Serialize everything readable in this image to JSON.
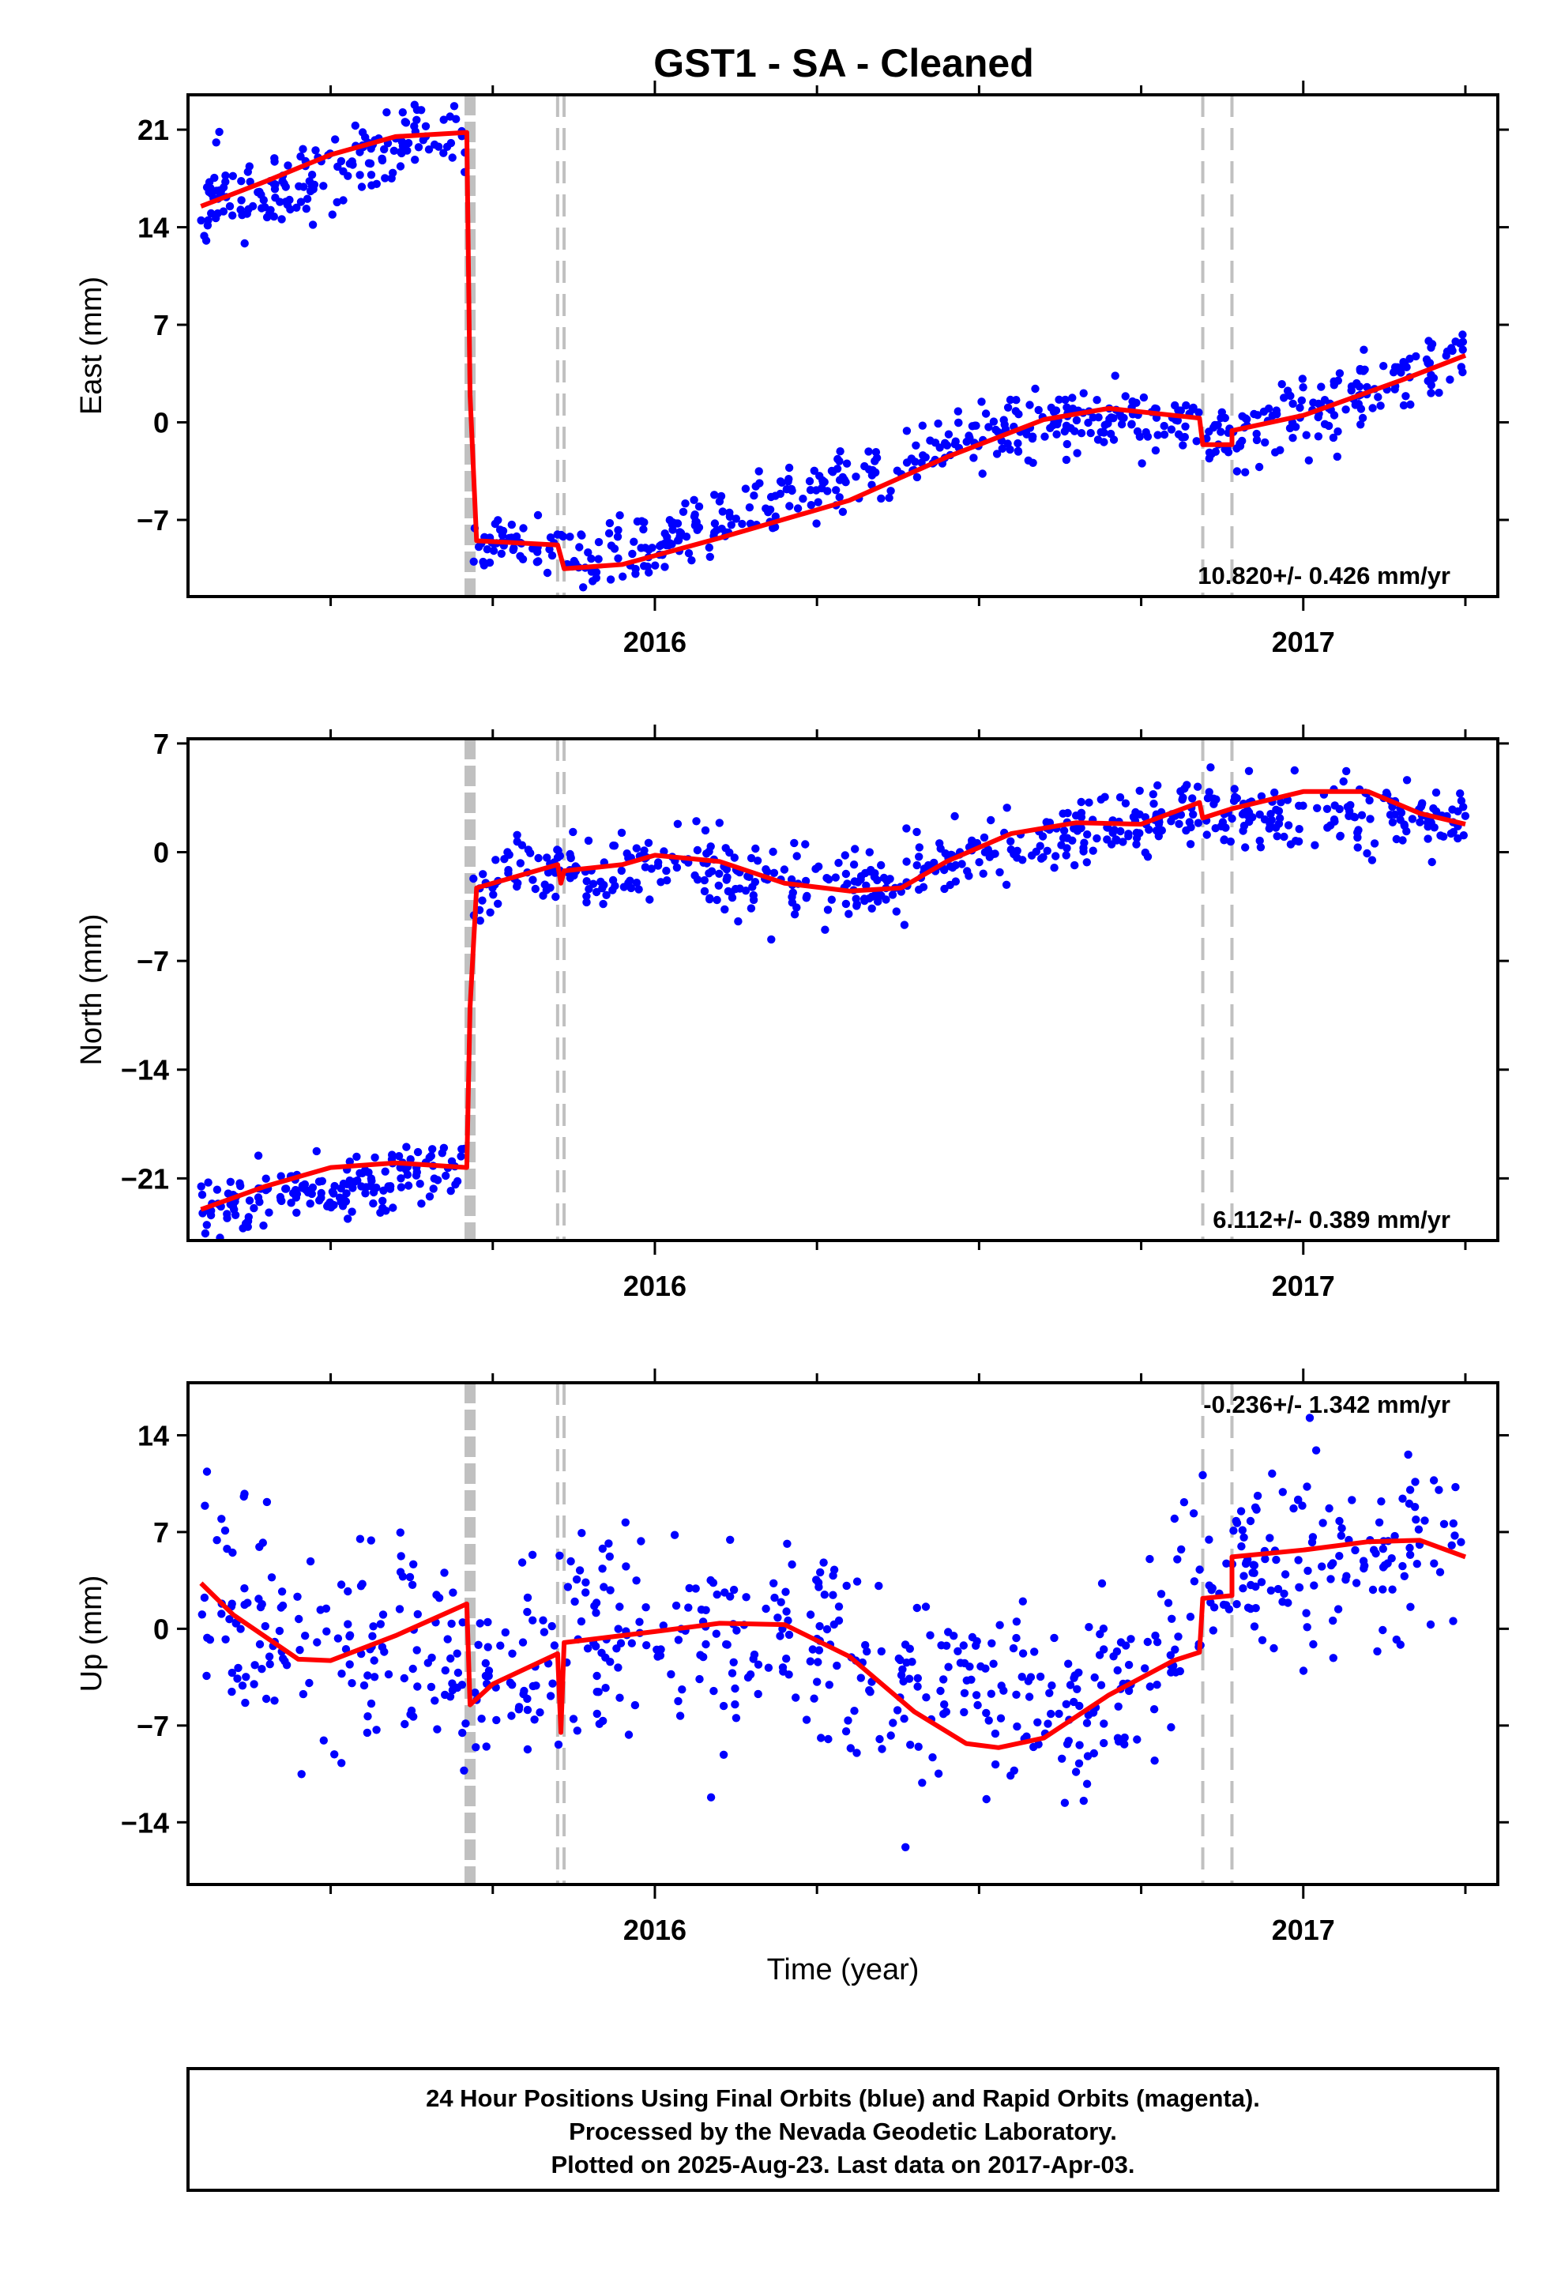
{
  "title": "GST1  - SA - Cleaned",
  "footer": {
    "line1": "24 Hour Positions Using Final Orbits (blue) and Rapid Orbits (magenta).",
    "line2": "Processed by the Nevada Geodetic Laboratory.",
    "line3": "Plotted on 2025-Aug-23. Last data on 2017-Apr-03."
  },
  "colors": {
    "points": "#0000ff",
    "fit": "#ff0000",
    "events": "#c0c0c0",
    "frame": "#000000"
  },
  "chart_data": [
    {
      "type": "scatter",
      "ylabel": "East (mm)",
      "xlabel": "",
      "xlim": [
        2015.28,
        2017.3
      ],
      "ylim": [
        -12.5,
        23.5
      ],
      "yticks": [
        -7,
        0,
        7,
        14,
        21
      ],
      "ytick_labels": [
        "−7",
        "0",
        "7",
        "14",
        "21"
      ],
      "xticks": [
        2016,
        2017
      ],
      "xtick_labels": [
        "2016",
        "2017"
      ],
      "rate_label": "10.820+/- 0.426 mm/yr",
      "rate_position": "bottom-right",
      "event_lines": [
        2015.715,
        2015.85,
        2015.86,
        2016.845,
        2016.89
      ],
      "fit": [
        [
          2015.3,
          15.5
        ],
        [
          2015.4,
          17.3
        ],
        [
          2015.5,
          19.2
        ],
        [
          2015.6,
          20.5
        ],
        [
          2015.71,
          20.8
        ],
        [
          2015.715,
          2.0
        ],
        [
          2015.725,
          -8.5
        ],
        [
          2015.85,
          -8.8
        ],
        [
          2015.86,
          -10.5
        ],
        [
          2015.95,
          -10.2
        ],
        [
          2016.1,
          -8.3
        ],
        [
          2016.3,
          -5.6
        ],
        [
          2016.45,
          -2.5
        ],
        [
          2016.6,
          0.2
        ],
        [
          2016.7,
          1.0
        ],
        [
          2016.84,
          0.3
        ],
        [
          2016.845,
          -1.6
        ],
        [
          2016.89,
          -1.6
        ],
        [
          2016.89,
          -0.6
        ],
        [
          2017.0,
          0.5
        ],
        [
          2017.15,
          3.0
        ],
        [
          2017.25,
          4.8
        ]
      ],
      "points": [
        {
          "x_range": [
            2015.3,
            2015.71
          ],
          "y_start": 15.5,
          "y_end": 20.8,
          "spread": 1.4,
          "n": 170,
          "seed": 11
        },
        {
          "x_range": [
            2015.72,
            2015.86
          ],
          "y_start": -8.8,
          "y_end": -8.8,
          "spread": 1.1,
          "n": 50,
          "seed": 12
        },
        {
          "x_range": [
            2015.86,
            2016.6
          ],
          "y_start": -10.5,
          "y_end": 0.2,
          "spread": 1.2,
          "n": 260,
          "seed": 13
        },
        {
          "x_range": [
            2016.6,
            2016.84
          ],
          "y_start": 0.2,
          "y_end": 0.3,
          "spread": 1.1,
          "n": 95,
          "seed": 14
        },
        {
          "x_range": [
            2016.85,
            2017.25
          ],
          "y_start": -1.6,
          "y_end": 4.8,
          "spread": 1.3,
          "n": 150,
          "seed": 15
        }
      ]
    },
    {
      "type": "scatter",
      "ylabel": "North (mm)",
      "xlabel": "",
      "xlim": [
        2015.28,
        2017.3
      ],
      "ylim": [
        -25,
        7.3
      ],
      "yticks": [
        -21,
        -14,
        -7,
        0,
        7
      ],
      "ytick_labels": [
        "−21",
        "−14",
        "−7",
        "0",
        "7"
      ],
      "xticks": [
        2016,
        2017
      ],
      "xtick_labels": [
        "2016",
        "2017"
      ],
      "rate_label": "6.112+/- 0.389 mm/yr",
      "rate_position": "bottom-right",
      "event_lines": [
        2015.715,
        2015.85,
        2015.86,
        2016.845,
        2016.89
      ],
      "fit": [
        [
          2015.3,
          -23.0
        ],
        [
          2015.4,
          -21.5
        ],
        [
          2015.5,
          -20.3
        ],
        [
          2015.6,
          -20.0
        ],
        [
          2015.71,
          -20.3
        ],
        [
          2015.715,
          -10.0
        ],
        [
          2015.725,
          -2.3
        ],
        [
          2015.85,
          -0.8
        ],
        [
          2015.855,
          -2.0
        ],
        [
          2015.86,
          -1.2
        ],
        [
          2015.95,
          -0.8
        ],
        [
          2016.0,
          -0.2
        ],
        [
          2016.1,
          -0.6
        ],
        [
          2016.2,
          -2.0
        ],
        [
          2016.3,
          -2.5
        ],
        [
          2016.38,
          -2.3
        ],
        [
          2016.45,
          -0.6
        ],
        [
          2016.55,
          1.2
        ],
        [
          2016.65,
          1.9
        ],
        [
          2016.75,
          1.8
        ],
        [
          2016.84,
          3.2
        ],
        [
          2016.845,
          2.2
        ],
        [
          2016.89,
          2.8
        ],
        [
          2017.0,
          3.9
        ],
        [
          2017.1,
          3.9
        ],
        [
          2017.18,
          2.5
        ],
        [
          2017.25,
          1.8
        ]
      ],
      "points": [
        {
          "x_range": [
            2015.3,
            2015.71
          ],
          "y_start": -23.0,
          "y_end": -20.3,
          "spread": 1.0,
          "n": 170,
          "seed": 21
        },
        {
          "x_range": [
            2015.72,
            2015.86
          ],
          "y_start": -2.3,
          "y_end": -0.8,
          "spread": 1.2,
          "n": 50,
          "seed": 22
        },
        {
          "x_range": [
            2015.86,
            2016.1
          ],
          "y_start": -1.0,
          "y_end": -0.6,
          "spread": 1.1,
          "n": 85,
          "seed": 23
        },
        {
          "x_range": [
            2016.1,
            2016.4
          ],
          "y_start": -1.5,
          "y_end": -2.5,
          "spread": 1.3,
          "n": 110,
          "seed": 24
        },
        {
          "x_range": [
            2016.4,
            2016.84
          ],
          "y_start": -1.0,
          "y_end": 2.8,
          "spread": 1.0,
          "n": 170,
          "seed": 25
        },
        {
          "x_range": [
            2016.85,
            2017.25
          ],
          "y_start": 2.8,
          "y_end": 2.2,
          "spread": 1.2,
          "n": 150,
          "seed": 26
        }
      ]
    },
    {
      "type": "scatter",
      "ylabel": "Up (mm)",
      "xlabel": "Time (year)",
      "xlim": [
        2015.28,
        2017.3
      ],
      "ylim": [
        -18.5,
        17.8
      ],
      "yticks": [
        -14,
        -7,
        0,
        7,
        14
      ],
      "ytick_labels": [
        "−14",
        "−7",
        "0",
        "7",
        "14"
      ],
      "xticks": [
        2016,
        2017
      ],
      "xtick_labels": [
        "2016",
        "2017"
      ],
      "rate_label": "-0.236+/- 1.342 mm/yr",
      "rate_position": "top-right",
      "event_lines": [
        2015.715,
        2015.85,
        2015.86,
        2016.845,
        2016.89
      ],
      "fit": [
        [
          2015.3,
          3.3
        ],
        [
          2015.35,
          1.0
        ],
        [
          2015.45,
          -2.2
        ],
        [
          2015.5,
          -2.3
        ],
        [
          2015.6,
          -0.5
        ],
        [
          2015.71,
          1.8
        ],
        [
          2015.715,
          -5.5
        ],
        [
          2015.75,
          -4.0
        ],
        [
          2015.85,
          -1.8
        ],
        [
          2015.855,
          -7.5
        ],
        [
          2015.86,
          -1.0
        ],
        [
          2016.0,
          -0.2
        ],
        [
          2016.1,
          0.4
        ],
        [
          2016.2,
          0.3
        ],
        [
          2016.3,
          -2.0
        ],
        [
          2016.4,
          -6.0
        ],
        [
          2016.48,
          -8.3
        ],
        [
          2016.53,
          -8.6
        ],
        [
          2016.6,
          -7.9
        ],
        [
          2016.7,
          -4.8
        ],
        [
          2016.8,
          -2.3
        ],
        [
          2016.84,
          -1.7
        ],
        [
          2016.845,
          2.2
        ],
        [
          2016.89,
          2.4
        ],
        [
          2016.89,
          5.2
        ],
        [
          2017.0,
          5.7
        ],
        [
          2017.1,
          6.3
        ],
        [
          2017.18,
          6.4
        ],
        [
          2017.25,
          5.2
        ]
      ],
      "points": [
        {
          "x_range": [
            2015.3,
            2015.71
          ],
          "y_start": 2.0,
          "y_end": -3.0,
          "spread": 4.0,
          "n": 150,
          "seed": 31
        },
        {
          "x_range": [
            2015.72,
            2015.86
          ],
          "y_start": -4.0,
          "y_end": -1.5,
          "spread": 3.8,
          "n": 50,
          "seed": 32
        },
        {
          "x_range": [
            2015.86,
            2016.3
          ],
          "y_start": 0.0,
          "y_end": -1.0,
          "spread": 3.8,
          "n": 160,
          "seed": 33
        },
        {
          "x_range": [
            2016.3,
            2016.8
          ],
          "y_start": -5.0,
          "y_end": -3.5,
          "spread": 3.6,
          "n": 180,
          "seed": 34
        },
        {
          "x_range": [
            2016.8,
            2017.25
          ],
          "y_start": 3.0,
          "y_end": 6.0,
          "spread": 4.0,
          "n": 160,
          "seed": 35
        }
      ]
    }
  ]
}
